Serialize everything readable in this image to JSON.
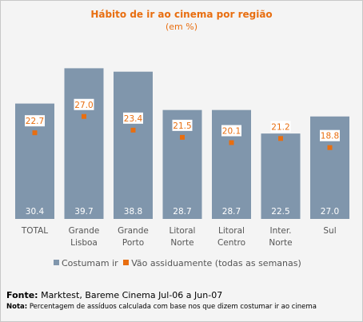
{
  "chart_data": {
    "type": "bar",
    "title": "Hábito de ir ao cinema por região",
    "subtitle": "(em %)",
    "categories": [
      [
        "TOTAL"
      ],
      [
        "Grande",
        "Lisboa"
      ],
      [
        "Grande",
        "Porto"
      ],
      [
        "Litoral",
        "Norte"
      ],
      [
        "Litoral",
        "Centro"
      ],
      [
        "Inter.",
        "Norte"
      ],
      [
        "Sul"
      ]
    ],
    "series": [
      {
        "name": "Costumam ir",
        "type": "bar",
        "color": "#8096ac",
        "values": [
          30.4,
          39.7,
          38.8,
          28.7,
          28.7,
          22.5,
          27.0
        ],
        "labels": [
          "30.4",
          "39.7",
          "38.8",
          "28.7",
          "28.7",
          "22.5",
          "27.0"
        ]
      },
      {
        "name": "Vão assiduamente (todas as semanas)",
        "type": "point",
        "color": "#e86e10",
        "values": [
          22.7,
          27.0,
          23.4,
          21.5,
          20.1,
          21.2,
          18.8
        ],
        "labels": [
          "22.7",
          "27.0",
          "23.4",
          "21.5",
          "20.1",
          "21.2",
          "18.8"
        ]
      }
    ],
    "ylim": [
      0,
      40
    ],
    "grid": false,
    "legend_position": "bottom"
  },
  "source": {
    "label": "Fonte:",
    "text": "Marktest, Bareme Cinema Jul-06 a Jun-07"
  },
  "note": {
    "label": "Nota:",
    "text": "Percentagem de assíduos calculada com base nos que dizem costumar ir ao cinema"
  }
}
